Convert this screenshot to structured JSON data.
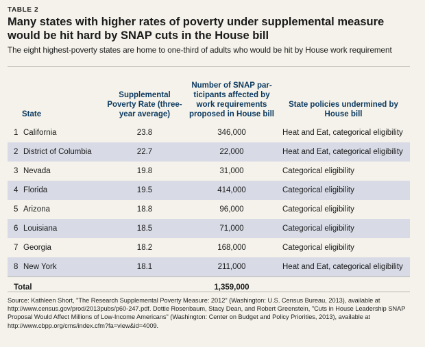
{
  "label": "TABLE 2",
  "title": "Many states with higher rates of poverty under supplemental measure would be hit hard by SNAP cuts in the House bill",
  "subtitle": "The eight highest-poverty states are home to one-third of adults who would be hit by House work requirement",
  "columns": {
    "state": "State",
    "rate": "Supplemental Poverty Rate (three-year average)",
    "participants": "Number of SNAP par-ticipants affected by work requirements proposed in House bill",
    "policies": "State policies undermined by House bill"
  },
  "rows": [
    {
      "rank": "1",
      "state": "California",
      "rate": "23.8",
      "participants": "346,000",
      "policy": "Heat and Eat, categorical eligibility"
    },
    {
      "rank": "2",
      "state": "District of Columbia",
      "rate": "22.7",
      "participants": "22,000",
      "policy": "Heat and Eat, categorical eligibility"
    },
    {
      "rank": "3",
      "state": "Nevada",
      "rate": "19.8",
      "participants": "31,000",
      "policy": "Categorical eligibility"
    },
    {
      "rank": "4",
      "state": "Florida",
      "rate": "19.5",
      "participants": "414,000",
      "policy": "Categorical eligibility"
    },
    {
      "rank": "5",
      "state": "Arizona",
      "rate": "18.8",
      "participants": "96,000",
      "policy": "Categorical eligibility"
    },
    {
      "rank": "6",
      "state": "Louisiana",
      "rate": "18.5",
      "participants": "71,000",
      "policy": "Categorical eligibility"
    },
    {
      "rank": "7",
      "state": "Georgia",
      "rate": "18.2",
      "participants": "168,000",
      "policy": "Categorical eligibility"
    },
    {
      "rank": "8",
      "state": "New York",
      "rate": "18.1",
      "participants": "211,000",
      "policy": "Heat and Eat, categorical eligibility"
    }
  ],
  "total": {
    "label": "Total",
    "participants": "1,359,000"
  },
  "source": "Source: Kathleen Short, \"The Research Supplemental Poverty Measure: 2012\" (Washington: U.S. Census Bureau, 2013), available at http://www.census.gov/prod/2013pubs/p60-247.pdf. Dottie Rosenbaum, Stacy Dean, and Robert Greenstein, \"Cuts in House Leadership SNAP Proposal Would Affect Millions of Low-Income Americans\" (Washington: Center on Budget and Policy Priorities, 2013), available at http://www.cbpp.org/cms/index.cfm?fa=view&id=4009.",
  "colors": {
    "background": "#f4f2ea",
    "header_text": "#0c3960",
    "row_shade": "#d8dbe6"
  }
}
